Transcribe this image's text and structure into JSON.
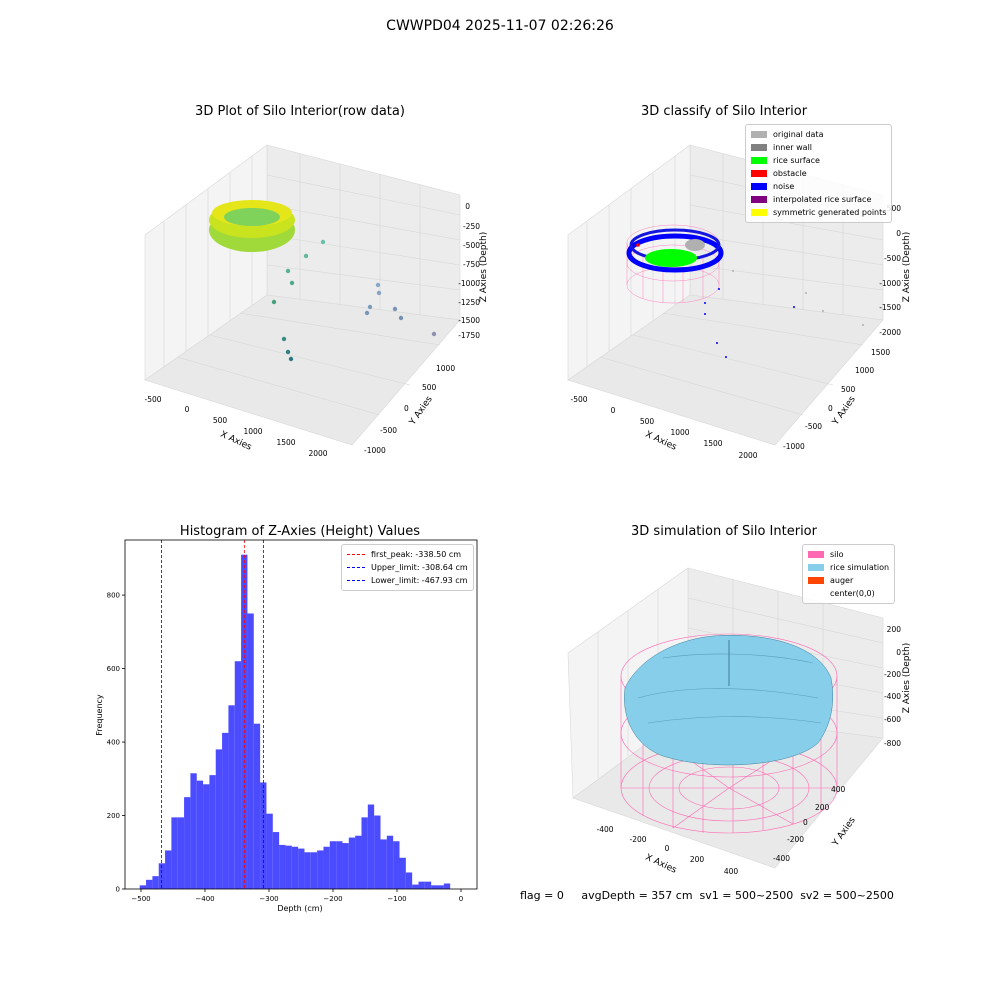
{
  "figure_title": "CWWPD04 2025-11-07 02:26:26",
  "panels": {
    "p1": {
      "title": "3D Plot of Silo Interior(row data)",
      "xlabel": "X Axies",
      "ylabel": "Y Axies",
      "zlabel": "Z Axies (Depth)",
      "xticks": [
        "-500",
        "0",
        "500",
        "1000",
        "1500",
        "2000"
      ],
      "yticks": [
        "-1000",
        "-500",
        "0",
        "500",
        "1000"
      ],
      "zticks": [
        "0",
        "-250",
        "-500",
        "-750",
        "-1000",
        "-1250",
        "-1500",
        "-1750"
      ]
    },
    "p2": {
      "title": "3D classify of Silo Interior",
      "xlabel": "X Axies",
      "ylabel": "Y Axies",
      "zlabel": "Z Axies (Depth)",
      "xticks": [
        "-500",
        "0",
        "500",
        "1000",
        "1500",
        "2000"
      ],
      "yticks": [
        "-1000",
        "-500",
        "0",
        "500",
        "1000",
        "1500"
      ],
      "zticks": [
        "500",
        "0",
        "-500",
        "-1000",
        "-1500",
        "-2000"
      ],
      "legend": [
        {
          "label": "original data",
          "color": "#b0b0b0"
        },
        {
          "label": "inner wall",
          "color": "#808080"
        },
        {
          "label": "rice surface",
          "color": "#00ff00"
        },
        {
          "label": "obstacle",
          "color": "#ff0000"
        },
        {
          "label": "noise",
          "color": "#0000ff"
        },
        {
          "label": "interpolated rice surface",
          "color": "#800080"
        },
        {
          "label": "symmetric generated points",
          "color": "#ffff00"
        }
      ]
    },
    "p3": {
      "title": "Histogram of Z-Axies (Height) Values",
      "legend": [
        {
          "label": "first_peak: -338.50 cm",
          "color": "#ff0000"
        },
        {
          "label": "Upper_limit: -308.64 cm",
          "color": "#0000ff"
        },
        {
          "label": "Lower_limit: -467.93 cm",
          "color": "#0000ff"
        }
      ]
    },
    "p4": {
      "title": "3D simulation of Silo Interior",
      "xlabel": "X Axies",
      "ylabel": "Y Axies",
      "zlabel": "Z Axies (Depth)",
      "xticks": [
        "-400",
        "-200",
        "0",
        "200",
        "400"
      ],
      "yticks": [
        "400",
        "200",
        "0",
        "-200",
        "-400"
      ],
      "zticks": [
        "200",
        "0",
        "-200",
        "-400",
        "-600",
        "-800"
      ],
      "legend": [
        {
          "label": "silo",
          "color": "#ff69b4"
        },
        {
          "label": "rice simulation",
          "color": "#87ceeb"
        },
        {
          "label": "auger",
          "color": "#ff4500"
        },
        {
          "label": "center(0,0)",
          "color": ""
        }
      ]
    }
  },
  "footer": {
    "text": "flag = 0     avgDepth = 357 cm  sv1 = 500~2500  sv2 = 500~2500"
  },
  "chart_data": {
    "type": "bar",
    "title": "Histogram of Z-Axies (Height) Values",
    "xlabel": "Depth (cm)",
    "ylabel": "Frequency",
    "xlim": [
      -525,
      25
    ],
    "ylim": [
      0,
      950
    ],
    "xticks": [
      -500,
      -400,
      -300,
      -200,
      -100,
      0
    ],
    "yticks": [
      0,
      200,
      400,
      600,
      800
    ],
    "bin_width": 9.9,
    "bin_start": -502,
    "color": "#4b4bff",
    "values": [
      10,
      25,
      35,
      70,
      105,
      195,
      195,
      250,
      315,
      295,
      285,
      310,
      380,
      425,
      500,
      620,
      910,
      750,
      450,
      290,
      205,
      155,
      120,
      118,
      115,
      110,
      100,
      100,
      105,
      115,
      130,
      130,
      125,
      140,
      145,
      195,
      230,
      200,
      135,
      145,
      130,
      85,
      45,
      12,
      20,
      20,
      10,
      10,
      15
    ],
    "vlines": [
      {
        "x": -338.5,
        "color": "#ff0000",
        "label": "first_peak: -338.50 cm"
      },
      {
        "x": -308.64,
        "color": "#0000ff",
        "label": "Upper_limit: -308.64 cm"
      },
      {
        "x": -467.93,
        "color": "#0000ff",
        "label": "Lower_limit: -467.93 cm"
      }
    ]
  }
}
